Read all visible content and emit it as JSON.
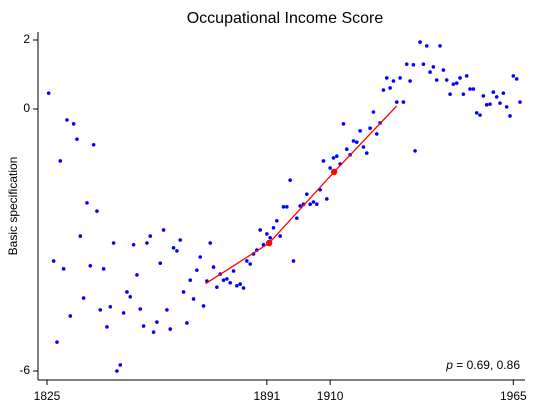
{
  "chart_data": {
    "type": "scatter",
    "title": "Occupational Income Score",
    "y_label": "Basic specification",
    "annotation": [
      "p",
      " = 0.69, 0.86"
    ],
    "xlim": [
      1822.3,
      1968.5
    ],
    "xticks": [
      1825,
      1891,
      1910,
      1965
    ],
    "ylim": [
      -6.2,
      2.23
    ],
    "yticks": [
      -6,
      0,
      2
    ],
    "series": [
      {
        "mode": "markers",
        "color": "#0000ff",
        "x": [
          1825.5,
          1827,
          1828,
          1829,
          1830,
          1831,
          1832,
          1833,
          1834,
          1835,
          1836,
          1837,
          1838,
          1839,
          1840,
          1841,
          1842,
          1843,
          1844,
          1845,
          1846,
          1847,
          1848,
          1849,
          1850,
          1851,
          1852,
          1853,
          1854,
          1855,
          1856,
          1857,
          1858,
          1859,
          1860,
          1861,
          1862,
          1863,
          1864,
          1865,
          1866,
          1867,
          1868,
          1869,
          1870,
          1871,
          1872,
          1873,
          1874,
          1875,
          1876,
          1877,
          1878,
          1879,
          1880,
          1881,
          1882,
          1883,
          1884,
          1885,
          1886,
          1887,
          1888,
          1889,
          1890,
          1891,
          1892,
          1893,
          1894,
          1895,
          1896,
          1897,
          1898,
          1899,
          1900,
          1901,
          1902,
          1903,
          1904,
          1905,
          1906,
          1907,
          1908,
          1909,
          1910,
          1911,
          1912,
          1913,
          1914,
          1915,
          1916,
          1917,
          1918,
          1919,
          1920,
          1921,
          1922,
          1923,
          1924,
          1925,
          1926,
          1927,
          1928,
          1929,
          1930,
          1931,
          1932,
          1933,
          1934,
          1935,
          1935.5,
          1937,
          1938,
          1939,
          1940,
          1941,
          1942,
          1943,
          1944,
          1945,
          1946,
          1947,
          1948,
          1949,
          1950,
          1951,
          1952,
          1953,
          1954,
          1955,
          1956,
          1957,
          1958,
          1959,
          1960,
          1961,
          1962,
          1963,
          1964,
          1965,
          1966,
          1967
        ],
        "values": [
          0.46,
          -3.48,
          -5.34,
          -1.19,
          -3.66,
          -0.25,
          -4.74,
          -0.34,
          -0.69,
          -2.91,
          -4.33,
          -2.15,
          -3.59,
          -0.82,
          -2.34,
          -4.6,
          -3.66,
          -4.99,
          -4.53,
          -3.07,
          -6.0,
          -5.86,
          -4.67,
          -4.19,
          -4.3,
          -3.11,
          -3.8,
          -4.58,
          -4.97,
          -3.07,
          -2.91,
          -5.11,
          -4.88,
          -3.53,
          -2.77,
          -4.6,
          -5.04,
          -3.18,
          -3.25,
          -3.0,
          -4.19,
          -4.9,
          -3.92,
          -4.35,
          -3.69,
          -3.39,
          -4.51,
          -3.94,
          -3.07,
          -3.62,
          -4.08,
          -3.78,
          -3.92,
          -3.89,
          -3.98,
          -3.71,
          -4.05,
          -4.01,
          -4.1,
          -3.48,
          -3.55,
          -3.32,
          -3.23,
          -2.77,
          -3.11,
          -2.86,
          -2.95,
          -2.72,
          -2.56,
          -2.91,
          -2.24,
          -2.24,
          -1.63,
          -3.48,
          -2.5,
          -2.22,
          -2.18,
          -1.95,
          -2.18,
          -2.13,
          -2.18,
          -1.85,
          -1.19,
          -2.06,
          -1.35,
          -1.12,
          -1.08,
          -1.26,
          -0.34,
          -0.92,
          -1.05,
          -0.73,
          -0.76,
          -0.5,
          -0.87,
          -1.01,
          -0.44,
          -0.07,
          -0.57,
          -0.32,
          0.55,
          0.9,
          0.61,
          0.81,
          0.2,
          0.9,
          0.2,
          1.3,
          0.81,
          1.28,
          -0.96,
          1.94,
          1.3,
          1.83,
          1.07,
          1.22,
          0.84,
          1.83,
          1.13,
          0.84,
          0.43,
          0.72,
          0.75,
          0.9,
          0.43,
          0.96,
          0.58,
          0.58,
          -0.09,
          -0.14,
          0.38,
          0.12,
          0.14,
          0.49,
          0.35,
          0.17,
          0.46,
          0.06,
          -0.16,
          0.96,
          0.87,
          0.2
        ]
      },
      {
        "mode": "line",
        "color": "#ff0000",
        "x": [
          1872.6,
          1891.7,
          1911.2,
          1930
        ],
        "values": [
          -4.0,
          -3.07,
          -1.44,
          0.09
        ]
      },
      {
        "mode": "markers",
        "color": "#ff0000",
        "size": 3.2,
        "x": [
          1891.7,
          1911.2
        ],
        "values": [
          -3.07,
          -1.44
        ]
      }
    ]
  }
}
